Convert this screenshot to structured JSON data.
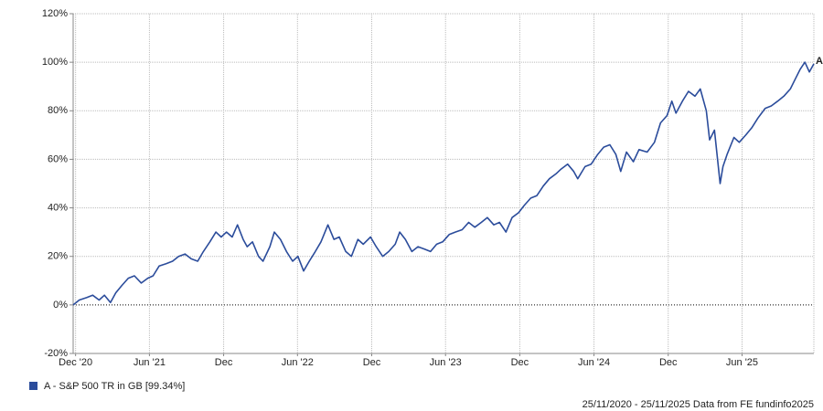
{
  "chart_data": {
    "type": "line",
    "x": [
      "2020-11-25",
      "2020-12-10",
      "2020-12-28",
      "2021-01-12",
      "2021-01-28",
      "2021-02-10",
      "2021-02-25",
      "2021-03-10",
      "2021-03-25",
      "2021-04-10",
      "2021-04-25",
      "2021-05-12",
      "2021-05-28",
      "2021-06-10",
      "2021-06-25",
      "2021-07-12",
      "2021-07-28",
      "2021-08-12",
      "2021-08-28",
      "2021-09-12",
      "2021-09-28",
      "2021-10-12",
      "2021-10-28",
      "2021-11-12",
      "2021-11-25",
      "2021-12-08",
      "2021-12-22",
      "2022-01-04",
      "2022-01-18",
      "2022-01-28",
      "2022-02-10",
      "2022-02-25",
      "2022-03-08",
      "2022-03-25",
      "2022-04-05",
      "2022-04-20",
      "2022-05-05",
      "2022-05-20",
      "2022-06-02",
      "2022-06-16",
      "2022-06-30",
      "2022-07-15",
      "2022-07-29",
      "2022-08-15",
      "2022-08-30",
      "2022-09-12",
      "2022-09-28",
      "2022-10-12",
      "2022-10-28",
      "2022-11-10",
      "2022-11-28",
      "2022-12-12",
      "2022-12-28",
      "2023-01-12",
      "2023-01-28",
      "2023-02-08",
      "2023-02-22",
      "2023-03-10",
      "2023-03-25",
      "2023-04-10",
      "2023-04-25",
      "2023-05-10",
      "2023-05-25",
      "2023-06-10",
      "2023-06-25",
      "2023-07-12",
      "2023-07-28",
      "2023-08-12",
      "2023-08-28",
      "2023-09-12",
      "2023-09-28",
      "2023-10-12",
      "2023-10-28",
      "2023-11-12",
      "2023-11-28",
      "2023-12-12",
      "2023-12-28",
      "2024-01-12",
      "2024-01-28",
      "2024-02-12",
      "2024-02-28",
      "2024-03-12",
      "2024-03-28",
      "2024-04-12",
      "2024-04-22",
      "2024-05-10",
      "2024-05-25",
      "2024-06-10",
      "2024-06-25",
      "2024-07-10",
      "2024-07-25",
      "2024-08-06",
      "2024-08-20",
      "2024-09-06",
      "2024-09-20",
      "2024-10-10",
      "2024-10-28",
      "2024-11-12",
      "2024-11-28",
      "2024-12-10",
      "2024-12-20",
      "2025-01-05",
      "2025-01-20",
      "2025-02-05",
      "2025-02-18",
      "2025-03-05",
      "2025-03-13",
      "2025-03-25",
      "2025-04-08",
      "2025-04-15",
      "2025-04-25",
      "2025-05-12",
      "2025-05-25",
      "2025-06-10",
      "2025-06-25",
      "2025-07-10",
      "2025-07-28",
      "2025-08-12",
      "2025-08-28",
      "2025-09-12",
      "2025-09-28",
      "2025-10-10",
      "2025-10-22",
      "2025-11-03",
      "2025-11-14",
      "2025-11-25"
    ],
    "series": [
      {
        "name": "A - S&P 500 TR in GB [99.34%]",
        "color": "#2b4c9b",
        "values": [
          0,
          2,
          3,
          4,
          2,
          4,
          1,
          5,
          8,
          11,
          12,
          9,
          11,
          12,
          16,
          17,
          18,
          20,
          21,
          19,
          18,
          22,
          26,
          30,
          28,
          30,
          28,
          33,
          27,
          24,
          26,
          20,
          18,
          24,
          30,
          27,
          22,
          18,
          20,
          14,
          18,
          22,
          26,
          33,
          27,
          28,
          22,
          20,
          27,
          25,
          28,
          24,
          20,
          22,
          25,
          30,
          27,
          22,
          24,
          23,
          22,
          25,
          26,
          29,
          30,
          31,
          34,
          32,
          34,
          36,
          33,
          34,
          30,
          36,
          38,
          41,
          44,
          45,
          49,
          52,
          54,
          56,
          58,
          55,
          52,
          57,
          58,
          62,
          65,
          66,
          62,
          55,
          63,
          59,
          64,
          63,
          67,
          75,
          78,
          84,
          79,
          84,
          88,
          86,
          89,
          80,
          68,
          72,
          50,
          57,
          62,
          69,
          67,
          70,
          73,
          77,
          81,
          82,
          84,
          86,
          89,
          93,
          97,
          100,
          96,
          99.34
        ]
      }
    ],
    "end_label": "A",
    "xlim": [
      "2020-11-25",
      "2025-11-25"
    ],
    "xticks": [
      {
        "value": "2020-12-01",
        "label": "Dec '20"
      },
      {
        "value": "2021-06-01",
        "label": "Jun '21"
      },
      {
        "value": "2021-12-01",
        "label": "Dec"
      },
      {
        "value": "2022-06-01",
        "label": "Jun '22"
      },
      {
        "value": "2022-12-01",
        "label": "Dec"
      },
      {
        "value": "2023-06-01",
        "label": "Jun '23"
      },
      {
        "value": "2023-12-01",
        "label": "Dec"
      },
      {
        "value": "2024-06-01",
        "label": "Jun '24"
      },
      {
        "value": "2024-12-01",
        "label": "Dec"
      },
      {
        "value": "2025-06-01",
        "label": "Jun '25"
      }
    ],
    "ylim": [
      -20,
      120
    ],
    "yticks": [
      {
        "value": -20,
        "label": "-20%"
      },
      {
        "value": 0,
        "label": "0%"
      },
      {
        "value": 20,
        "label": "20%"
      },
      {
        "value": 40,
        "label": "40%"
      },
      {
        "value": 60,
        "label": "60%"
      },
      {
        "value": 80,
        "label": "80%"
      },
      {
        "value": 100,
        "label": "100%"
      },
      {
        "value": 120,
        "label": "120%"
      }
    ],
    "grid": true,
    "footer": "25/11/2020 - 25/11/2025 Data from FE fundinfo2025"
  }
}
